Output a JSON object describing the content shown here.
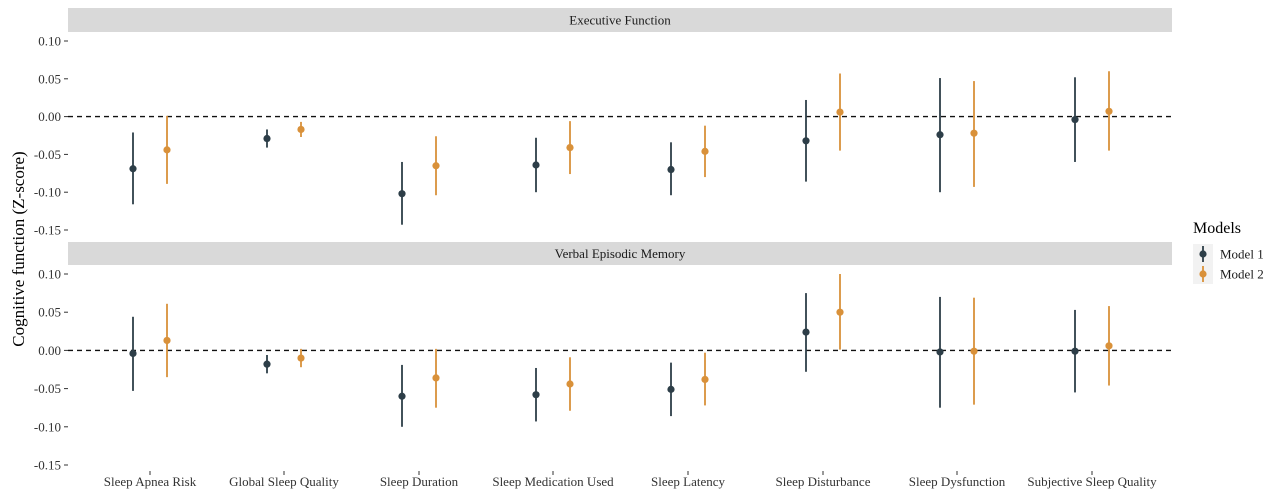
{
  "chart_data": {
    "type": "scatter",
    "subtype": "pointrange",
    "ylabel": "Cognitive function (Z-score)",
    "ylim": [
      -0.15,
      0.1
    ],
    "yticks": [
      "0.10",
      "0.05",
      "0.00",
      "-0.05",
      "-0.10",
      "-0.15"
    ],
    "categories": [
      "Sleep Apnea Risk",
      "Global Sleep Quality",
      "Sleep Duration",
      "Sleep Medication Used",
      "Sleep Latency",
      "Sleep Disturbance",
      "Sleep Dysfunction",
      "Subjective Sleep Quality"
    ],
    "reference_line": 0,
    "legend": {
      "title": "Models",
      "position": "right",
      "entries": [
        {
          "name": "Model 1",
          "color": "#2d3e48"
        },
        {
          "name": "Model 2",
          "color": "#d9913a"
        }
      ]
    },
    "panels": [
      {
        "title": "Executive Function",
        "series": [
          {
            "name": "Model 1",
            "color": "#2d3e48",
            "estimate": [
              -0.069,
              -0.029,
              -0.102,
              -0.064,
              -0.07,
              -0.032,
              -0.024,
              -0.004
            ],
            "lower": [
              -0.116,
              -0.041,
              -0.143,
              -0.1,
              -0.104,
              -0.086,
              -0.1,
              -0.06
            ],
            "upper": [
              -0.021,
              -0.017,
              -0.06,
              -0.028,
              -0.034,
              0.022,
              0.051,
              0.052
            ]
          },
          {
            "name": "Model 2",
            "color": "#d9913a",
            "estimate": [
              -0.044,
              -0.017,
              -0.065,
              -0.041,
              -0.046,
              0.006,
              -0.022,
              0.007
            ],
            "lower": [
              -0.089,
              -0.027,
              -0.104,
              -0.076,
              -0.08,
              -0.045,
              -0.093,
              -0.045
            ],
            "upper": [
              0.001,
              -0.007,
              -0.026,
              -0.006,
              -0.012,
              0.057,
              0.047,
              0.06
            ]
          }
        ]
      },
      {
        "title": "Verbal Episodic Memory",
        "series": [
          {
            "name": "Model 1",
            "color": "#2d3e48",
            "estimate": [
              -0.004,
              -0.018,
              -0.06,
              -0.058,
              -0.051,
              0.024,
              -0.002,
              -0.001
            ],
            "lower": [
              -0.053,
              -0.03,
              -0.1,
              -0.093,
              -0.086,
              -0.028,
              -0.075,
              -0.055
            ],
            "upper": [
              0.044,
              -0.006,
              -0.019,
              -0.023,
              -0.016,
              0.075,
              0.07,
              0.053
            ]
          },
          {
            "name": "Model 2",
            "color": "#d9913a",
            "estimate": [
              0.013,
              -0.01,
              -0.036,
              -0.044,
              -0.038,
              0.05,
              -0.001,
              0.006
            ],
            "lower": [
              -0.035,
              -0.022,
              -0.075,
              -0.079,
              -0.072,
              0.001,
              -0.071,
              -0.046
            ],
            "upper": [
              0.061,
              0.002,
              0.002,
              -0.009,
              -0.003,
              0.1,
              0.069,
              0.058
            ]
          }
        ]
      }
    ]
  }
}
